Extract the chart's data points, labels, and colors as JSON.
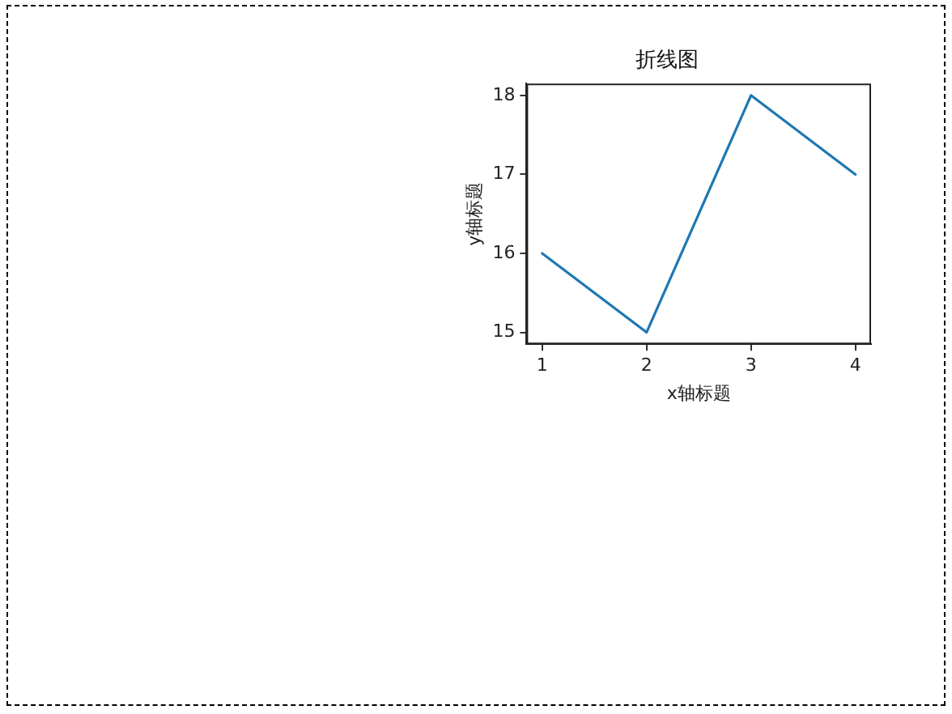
{
  "chart_data": {
    "type": "line",
    "title": "折线图",
    "xlabel": "x轴标题",
    "ylabel": "y轴标题",
    "x": [
      1,
      2,
      3,
      4
    ],
    "series": [
      {
        "color": "#1f77b4",
        "values": [
          16,
          15,
          18,
          17
        ]
      }
    ],
    "xlim": [
      0.85,
      4.15
    ],
    "xticks": [
      1,
      2,
      3,
      4
    ],
    "ylim": [
      14.85,
      18.15
    ],
    "yticks": [
      15,
      16,
      17,
      18
    ],
    "grid": false,
    "legend": false,
    "marker": "none",
    "line_style": "solid"
  }
}
